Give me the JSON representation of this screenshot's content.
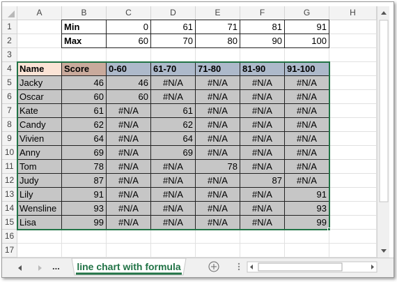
{
  "column_headers": [
    "A",
    "B",
    "C",
    "D",
    "E",
    "F",
    "G",
    "H"
  ],
  "row_headers": [
    "1",
    "2",
    "3",
    "4",
    "5",
    "6",
    "7",
    "8",
    "9",
    "10",
    "11",
    "12",
    "13",
    "14",
    "15",
    "16",
    "17"
  ],
  "rows": [
    [
      null,
      "Min",
      "0",
      "61",
      "71",
      "81",
      "91"
    ],
    [
      null,
      "Max",
      "60",
      "70",
      "80",
      "90",
      "100"
    ],
    [
      null,
      null,
      null,
      null,
      null,
      null,
      null
    ],
    [
      "Name",
      "Score",
      "0-60",
      "61-70",
      "71-80",
      "81-90",
      "91-100"
    ],
    [
      "Jacky",
      "46",
      "46",
      "#N/A",
      "#N/A",
      "#N/A",
      "#N/A"
    ],
    [
      "Oscar",
      "60",
      "60",
      "#N/A",
      "#N/A",
      "#N/A",
      "#N/A"
    ],
    [
      "Kate",
      "61",
      "#N/A",
      "61",
      "#N/A",
      "#N/A",
      "#N/A"
    ],
    [
      "Candy",
      "62",
      "#N/A",
      "62",
      "#N/A",
      "#N/A",
      "#N/A"
    ],
    [
      "Vivien",
      "64",
      "#N/A",
      "64",
      "#N/A",
      "#N/A",
      "#N/A"
    ],
    [
      "Anny",
      "69",
      "#N/A",
      "69",
      "#N/A",
      "#N/A",
      "#N/A"
    ],
    [
      "Tom",
      "78",
      "#N/A",
      "#N/A",
      "78",
      "#N/A",
      "#N/A"
    ],
    [
      "Judy",
      "87",
      "#N/A",
      "#N/A",
      "#N/A",
      "87",
      "#N/A"
    ],
    [
      "Lily",
      "91",
      "#N/A",
      "#N/A",
      "#N/A",
      "#N/A",
      "91"
    ],
    [
      "Wensline",
      "93",
      "#N/A",
      "#N/A",
      "#N/A",
      "#N/A",
      "93"
    ],
    [
      "Lisa",
      "99",
      "#N/A",
      "#N/A",
      "#N/A",
      "#N/A",
      "99"
    ],
    [
      null,
      null,
      null,
      null,
      null,
      null,
      null
    ],
    [
      null,
      null,
      null,
      null,
      null,
      null,
      null
    ]
  ],
  "tabs": {
    "more": "...",
    "active": "line chart with formula"
  }
}
